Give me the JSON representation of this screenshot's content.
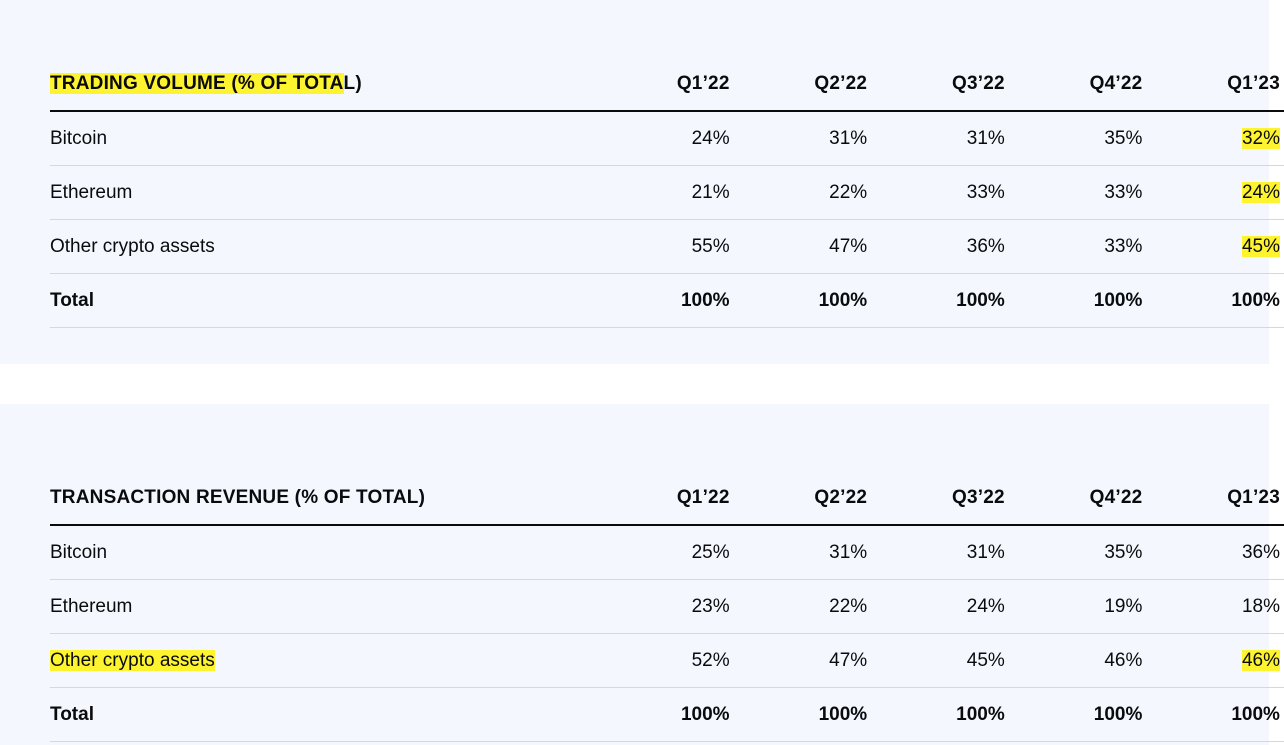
{
  "tables": [
    {
      "title_highlighted": "TRADING VOLUME (% OF TOTA",
      "title_rest": "L)",
      "columns": [
        "Q1’22",
        "Q2’22",
        "Q3’22",
        "Q4’22",
        "Q1’23"
      ],
      "rows": [
        {
          "label": "Bitcoin",
          "values": [
            "24%",
            "31%",
            "31%",
            "35%",
            "32%"
          ]
        },
        {
          "label": "Ethereum",
          "values": [
            "21%",
            "22%",
            "33%",
            "33%",
            "24%"
          ]
        },
        {
          "label": "Other crypto assets",
          "values": [
            "55%",
            "47%",
            "36%",
            "33%",
            "45%"
          ]
        },
        {
          "label": "Total",
          "values": [
            "100%",
            "100%",
            "100%",
            "100%",
            "100%"
          ]
        }
      ]
    },
    {
      "title": "TRANSACTION REVENUE (% OF TOTAL)",
      "columns": [
        "Q1’22",
        "Q2’22",
        "Q3’22",
        "Q4’22",
        "Q1’23"
      ],
      "rows": [
        {
          "label": "Bitcoin",
          "values": [
            "25%",
            "31%",
            "31%",
            "35%",
            "36%"
          ]
        },
        {
          "label": "Ethereum",
          "values": [
            "23%",
            "22%",
            "24%",
            "19%",
            "18%"
          ]
        },
        {
          "label": "Other crypto assets",
          "values": [
            "52%",
            "47%",
            "45%",
            "46%",
            "46%"
          ]
        },
        {
          "label": "Total",
          "values": [
            "100%",
            "100%",
            "100%",
            "100%",
            "100%"
          ]
        }
      ]
    }
  ],
  "highlight_color": "#fdf32e"
}
